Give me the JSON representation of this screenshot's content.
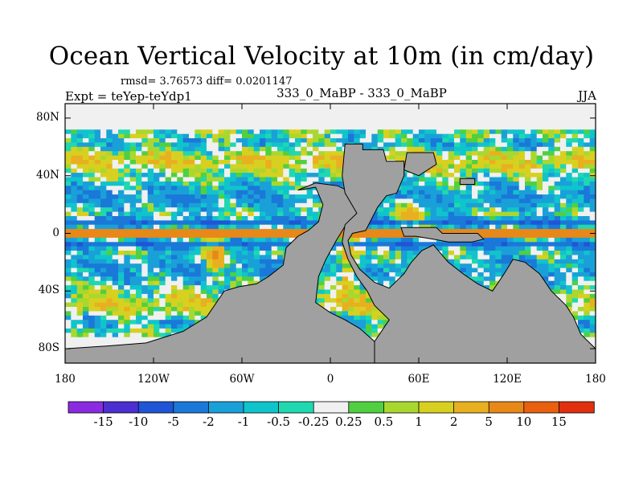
{
  "title": "Ocean Vertical Velocity at 10m (in cm/day)",
  "stats_line": "rmsd= 3.76573 diff= 0.0201147",
  "expt_label": "Expt = teYep-teYdp1",
  "center_label": "333_0_MaBP - 333_0_MaBP",
  "season": "JJA",
  "chart_data": {
    "type": "heatmap",
    "title": "Ocean Vertical Velocity at 10m (in cm/day)",
    "units": "cm/day",
    "x_ticks": [
      "180",
      "120W",
      "60W",
      "0",
      "60E",
      "120E",
      "180"
    ],
    "x_tick_values": [
      -180,
      -120,
      -60,
      0,
      60,
      120,
      180
    ],
    "y_ticks": [
      "80N",
      "40N",
      "0",
      "40S",
      "80S"
    ],
    "y_tick_values": [
      80,
      40,
      0,
      -40,
      -80
    ],
    "xlim": [
      -180,
      180
    ],
    "ylim": [
      -90,
      90
    ],
    "colorbar": {
      "boundaries": [
        "-15",
        "-10",
        "-5",
        "-2",
        "-1",
        "-0.5",
        "-0.25",
        "0.25",
        "0.5",
        "1",
        "2",
        "5",
        "10",
        "15"
      ],
      "colors": [
        "#8a2be2",
        "#4b2fd0",
        "#1f55d6",
        "#1a78d8",
        "#1aa0d8",
        "#10c4cc",
        "#20d8b0",
        "#f0f0f0",
        "#50d040",
        "#a8d830",
        "#d8d020",
        "#e8b020",
        "#e88818",
        "#e86010",
        "#e03010"
      ]
    },
    "land_color": "#a0a0a0"
  }
}
